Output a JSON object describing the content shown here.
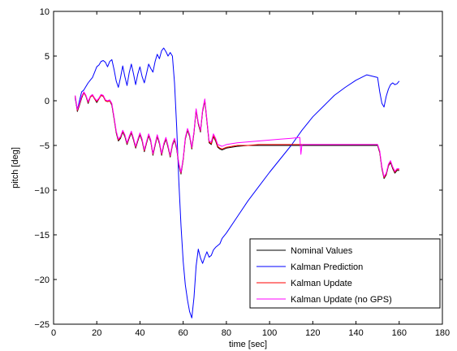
{
  "chart_data": {
    "type": "line",
    "title": "",
    "xlabel": "time [sec]",
    "ylabel": "pitch [deg]",
    "xlim": [
      0,
      180
    ],
    "ylim": [
      -25,
      10
    ],
    "xticks": [
      0,
      20,
      40,
      60,
      80,
      100,
      120,
      140,
      160,
      180
    ],
    "yticks": [
      10,
      5,
      0,
      -5,
      -10,
      -15,
      -20,
      -25
    ],
    "xtick_labels": [
      "0",
      "20",
      "40",
      "60",
      "80",
      "100",
      "120",
      "140",
      "160",
      "180"
    ],
    "ytick_labels": [
      "10",
      "5",
      "0",
      "−5",
      "−10",
      "−15",
      "−20",
      "−25"
    ],
    "grid": false,
    "legend_position": "bottom-right",
    "series": [
      {
        "name": "Nominal Values",
        "color": "#000000",
        "x": [
          10,
          11,
          12,
          13,
          14,
          15,
          16,
          17,
          18,
          19,
          20,
          21,
          22,
          23,
          24,
          25,
          26,
          27,
          28,
          29,
          30,
          31,
          32,
          33,
          34,
          35,
          36,
          37,
          38,
          39,
          40,
          41,
          42,
          43,
          44,
          45,
          46,
          47,
          48,
          49,
          50,
          51,
          52,
          53,
          54,
          55,
          56,
          57,
          58,
          59,
          60,
          61,
          62,
          63,
          64,
          65,
          66,
          67,
          68,
          69,
          70,
          71,
          72,
          73,
          74,
          75,
          76,
          77,
          78,
          80,
          85,
          90,
          95,
          100,
          105,
          110,
          115,
          120,
          125,
          130,
          135,
          140,
          145,
          150,
          151,
          152,
          153,
          154,
          155,
          156,
          157,
          158,
          159,
          160
        ],
        "y": [
          0.5,
          -1.2,
          -0.5,
          0.3,
          0.9,
          0.5,
          -0.3,
          0.4,
          0.6,
          0.2,
          -0.2,
          0.2,
          0.6,
          0.5,
          0.0,
          -0.1,
          0.0,
          -0.5,
          -2.0,
          -3.6,
          -4.5,
          -4.2,
          -3.5,
          -4.0,
          -4.9,
          -4.2,
          -3.6,
          -4.4,
          -5.3,
          -4.5,
          -3.8,
          -4.5,
          -5.7,
          -4.8,
          -3.9,
          -4.6,
          -6.1,
          -5.0,
          -4.0,
          -4.8,
          -6.1,
          -5.0,
          -4.3,
          -5.2,
          -6.3,
          -5.0,
          -4.4,
          -5.4,
          -7.2,
          -8.2,
          -6.6,
          -4.3,
          -3.3,
          -4.0,
          -5.4,
          -3.6,
          -1.1,
          -2.6,
          -3.5,
          -1.2,
          0.0,
          -2.3,
          -4.7,
          -4.9,
          -4.0,
          -4.5,
          -5.2,
          -5.4,
          -5.5,
          -5.3,
          -5.1,
          -5.0,
          -5.0,
          -5.0,
          -5.0,
          -5.0,
          -5.0,
          -5.0,
          -5.0,
          -5.0,
          -5.0,
          -5.0,
          -5.0,
          -5.0,
          -5.8,
          -7.6,
          -8.7,
          -8.3,
          -7.3,
          -6.9,
          -7.6,
          -8.1,
          -7.8,
          -7.8
        ]
      },
      {
        "name": "Kalman Prediction",
        "color": "#0000ff",
        "x": [
          10,
          11,
          12,
          13,
          14,
          15,
          16,
          17,
          18,
          19,
          20,
          21,
          22,
          23,
          24,
          25,
          26,
          27,
          28,
          29,
          30,
          31,
          32,
          33,
          34,
          35,
          36,
          37,
          38,
          39,
          40,
          41,
          42,
          43,
          44,
          45,
          46,
          47,
          48,
          49,
          50,
          51,
          52,
          53,
          54,
          55,
          56,
          57,
          58,
          59,
          60,
          61,
          62,
          63,
          64,
          65,
          66,
          67,
          68,
          69,
          70,
          71,
          72,
          73,
          74,
          75,
          76,
          77,
          78,
          80,
          85,
          90,
          95,
          100,
          105,
          110,
          115,
          120,
          125,
          130,
          135,
          140,
          145,
          150,
          151,
          152,
          153,
          154,
          155,
          156,
          157,
          158,
          159,
          160
        ],
        "y": [
          0.3,
          -1.0,
          0.0,
          1.0,
          1.2,
          1.6,
          2.0,
          2.3,
          2.6,
          3.2,
          3.8,
          4.0,
          4.4,
          4.5,
          4.3,
          3.8,
          4.4,
          4.6,
          3.5,
          2.2,
          1.5,
          2.6,
          3.9,
          2.7,
          1.7,
          3.1,
          4.1,
          3.0,
          1.8,
          3.0,
          3.8,
          2.7,
          2.0,
          3.0,
          4.1,
          3.6,
          3.2,
          4.4,
          5.2,
          4.7,
          5.6,
          5.9,
          5.5,
          5.0,
          5.4,
          5.0,
          2.0,
          -3.0,
          -9.0,
          -14.0,
          -18.0,
          -20.6,
          -22.3,
          -23.6,
          -24.3,
          -22.0,
          -18.5,
          -16.6,
          -17.6,
          -18.2,
          -17.5,
          -16.9,
          -17.5,
          -17.3,
          -16.7,
          -16.4,
          -16.2,
          -16.0,
          -15.4,
          -14.8,
          -13.0,
          -11.2,
          -9.6,
          -8.0,
          -6.5,
          -5.0,
          -3.3,
          -1.8,
          -0.6,
          0.6,
          1.5,
          2.3,
          2.9,
          2.6,
          1.0,
          -0.3,
          -0.7,
          0.5,
          1.3,
          1.8,
          2.0,
          1.8,
          1.9,
          2.2
        ]
      },
      {
        "name": "Kalman Update",
        "color": "#ff0000",
        "x": [
          10,
          11,
          12,
          13,
          14,
          15,
          16,
          17,
          18,
          19,
          20,
          21,
          22,
          23,
          24,
          25,
          26,
          27,
          28,
          29,
          30,
          31,
          32,
          33,
          34,
          35,
          36,
          37,
          38,
          39,
          40,
          41,
          42,
          43,
          44,
          45,
          46,
          47,
          48,
          49,
          50,
          51,
          52,
          53,
          54,
          55,
          56,
          57,
          58,
          59,
          60,
          61,
          62,
          63,
          64,
          65,
          66,
          67,
          68,
          69,
          70,
          71,
          72,
          73,
          74,
          75,
          76,
          77,
          78,
          80,
          85,
          90,
          95,
          100,
          105,
          110,
          115,
          120,
          125,
          130,
          135,
          140,
          145,
          150,
          151,
          152,
          153,
          154,
          155,
          156,
          157,
          158,
          159,
          160
        ],
        "y": [
          0.5,
          -1.1,
          -0.4,
          0.4,
          0.9,
          0.5,
          -0.2,
          0.4,
          0.6,
          0.2,
          -0.1,
          0.2,
          0.6,
          0.5,
          0.0,
          -0.1,
          0.0,
          -0.4,
          -1.9,
          -3.5,
          -4.4,
          -4.1,
          -3.4,
          -3.9,
          -4.8,
          -4.1,
          -3.5,
          -4.3,
          -5.2,
          -4.4,
          -3.7,
          -4.4,
          -5.6,
          -4.7,
          -3.8,
          -4.5,
          -6.0,
          -4.9,
          -3.9,
          -4.7,
          -6.0,
          -4.9,
          -4.2,
          -5.1,
          -6.2,
          -4.9,
          -4.3,
          -5.3,
          -7.1,
          -8.1,
          -6.5,
          -4.2,
          -3.2,
          -3.9,
          -5.3,
          -3.5,
          -1.0,
          -2.5,
          -3.4,
          -1.1,
          0.1,
          -2.2,
          -4.6,
          -4.8,
          -3.9,
          -4.4,
          -5.1,
          -5.3,
          -5.4,
          -5.2,
          -5.0,
          -5.0,
          -4.9,
          -4.9,
          -4.9,
          -4.9,
          -4.9,
          -4.9,
          -4.9,
          -4.9,
          -4.9,
          -4.9,
          -4.9,
          -4.9,
          -5.7,
          -7.5,
          -8.6,
          -8.2,
          -7.2,
          -6.8,
          -7.5,
          -8.0,
          -7.7,
          -7.7
        ]
      },
      {
        "name": "Kalman Update (no GPS)",
        "color": "#ff00ff",
        "x": [
          10,
          11,
          12,
          13,
          14,
          15,
          16,
          17,
          18,
          19,
          20,
          21,
          22,
          23,
          24,
          25,
          26,
          27,
          28,
          29,
          30,
          31,
          32,
          33,
          34,
          35,
          36,
          37,
          38,
          39,
          40,
          41,
          42,
          43,
          44,
          45,
          46,
          47,
          48,
          49,
          50,
          51,
          52,
          53,
          54,
          55,
          56,
          57,
          58,
          59,
          60,
          61,
          62,
          63,
          64,
          65,
          66,
          67,
          68,
          69,
          70,
          71,
          72,
          73,
          74,
          75,
          76,
          77,
          78,
          80,
          85,
          90,
          95,
          100,
          105,
          110,
          114,
          114.5,
          115,
          120,
          125,
          130,
          135,
          140,
          145,
          150,
          151,
          152,
          153,
          154,
          155,
          156,
          157,
          158,
          159,
          160
        ],
        "y": [
          0.6,
          -1.0,
          -0.3,
          0.5,
          1.0,
          0.6,
          -0.1,
          0.5,
          0.7,
          0.3,
          0.0,
          0.3,
          0.7,
          0.6,
          0.1,
          0.0,
          0.1,
          -0.3,
          -1.8,
          -3.4,
          -4.3,
          -4.0,
          -3.3,
          -3.8,
          -4.7,
          -4.0,
          -3.4,
          -4.2,
          -5.1,
          -4.3,
          -3.6,
          -4.3,
          -5.5,
          -4.6,
          -3.7,
          -4.4,
          -5.9,
          -4.8,
          -3.8,
          -4.6,
          -5.9,
          -4.8,
          -4.1,
          -5.0,
          -6.1,
          -4.8,
          -4.2,
          -5.2,
          -7.0,
          -8.0,
          -6.4,
          -4.1,
          -3.1,
          -3.8,
          -5.2,
          -3.4,
          -0.9,
          -2.4,
          -3.3,
          -1.0,
          0.2,
          -2.1,
          -4.5,
          -4.6,
          -3.7,
          -4.2,
          -4.9,
          -5.0,
          -5.1,
          -4.9,
          -4.7,
          -4.6,
          -4.5,
          -4.4,
          -4.3,
          -4.2,
          -4.1,
          -6.0,
          -4.9,
          -4.9,
          -4.9,
          -4.9,
          -4.9,
          -4.9,
          -4.9,
          -4.9,
          -5.6,
          -7.4,
          -8.5,
          -8.1,
          -7.1,
          -6.7,
          -7.4,
          -7.9,
          -7.6,
          -7.6
        ]
      }
    ]
  }
}
